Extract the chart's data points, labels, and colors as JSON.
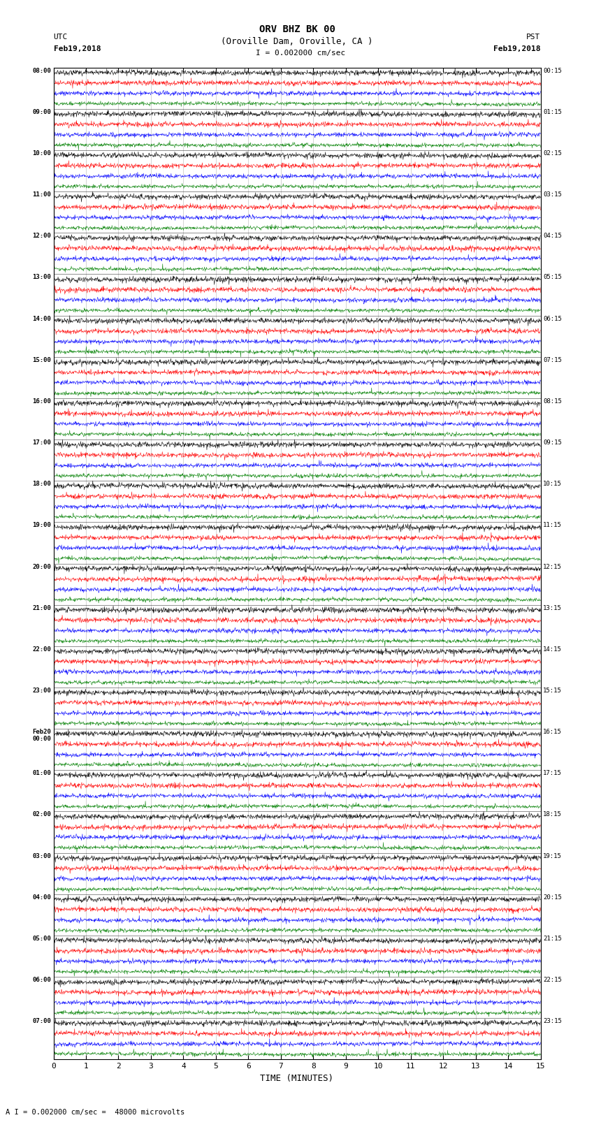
{
  "title_line1": "ORV BHZ BK 00",
  "title_line2": "(Oroville Dam, Oroville, CA )",
  "scale_label": "= 0.002000 cm/sec",
  "bottom_label": "A I = 0.002000 cm/sec =  48000 microvolts",
  "xlabel": "TIME (MINUTES)",
  "left_header": "UTC",
  "left_date": "Feb19,2018",
  "right_header": "PST",
  "right_date": "Feb19,2018",
  "x_min": 0,
  "x_max": 15,
  "left_times": [
    "08:00",
    "09:00",
    "10:00",
    "11:00",
    "12:00",
    "13:00",
    "14:00",
    "15:00",
    "16:00",
    "17:00",
    "18:00",
    "19:00",
    "20:00",
    "21:00",
    "22:00",
    "23:00",
    "Feb20\n00:00",
    "01:00",
    "02:00",
    "03:00",
    "04:00",
    "05:00",
    "06:00",
    "07:00"
  ],
  "right_times": [
    "00:15",
    "01:15",
    "02:15",
    "03:15",
    "04:15",
    "05:15",
    "06:15",
    "07:15",
    "08:15",
    "09:15",
    "10:15",
    "11:15",
    "12:15",
    "13:15",
    "14:15",
    "15:15",
    "16:15",
    "17:15",
    "18:15",
    "19:15",
    "20:15",
    "21:15",
    "22:15",
    "23:15"
  ],
  "trace_colors": [
    "black",
    "red",
    "blue",
    "green"
  ],
  "n_rows": 24,
  "traces_per_row": 4,
  "bg_color": "white",
  "grid_color": "#888888",
  "figsize": [
    8.5,
    16.13
  ],
  "dpi": 100
}
